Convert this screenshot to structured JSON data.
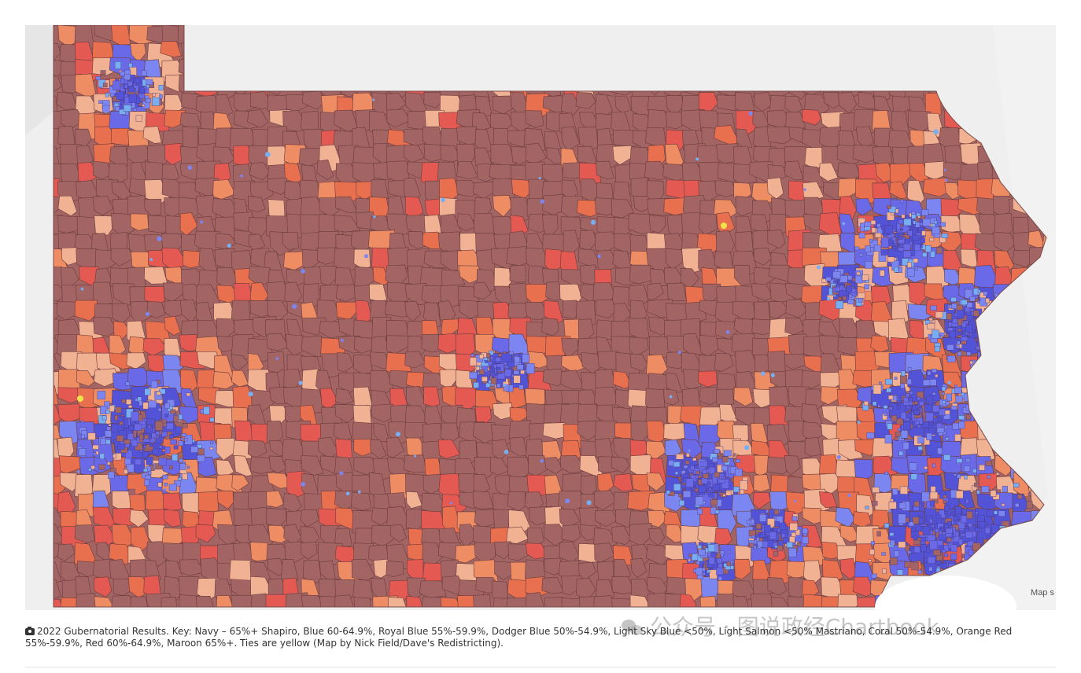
{
  "caption": {
    "text": "2022 Gubernatorial Results. Key: Navy – 65%+ Shapiro, Blue 60-64.9%, Royal Blue 55%-59.9%, Dodger Blue 50%-54.9%, Light Sky Blue <50%, Light Salmon <50% Mastriano, Coral 50%-54.9%, Orange Red 55%-59.9%, Red 60%-64.9%, Maroon 65%+. Ties are yellow (Map by Nick Field/Dave's Redistricting)."
  },
  "map": {
    "attribution": "Map s",
    "legend_colors": {
      "navy": "#5353d8",
      "blue": "#6a6ae8",
      "royal_blue": "#7c86f0",
      "dodger_blue": "#78aef2",
      "light_sky_blue": "#a7d0f5",
      "light_salmon": "#f1b193",
      "coral": "#ee8d64",
      "orange_red": "#e9704f",
      "red": "#e45a52",
      "maroon": "#a36464",
      "tie": "#f0e24a"
    },
    "background_color": "#efefef"
  },
  "watermark": {
    "text": "公众号 · 图说政经Chartbook"
  }
}
